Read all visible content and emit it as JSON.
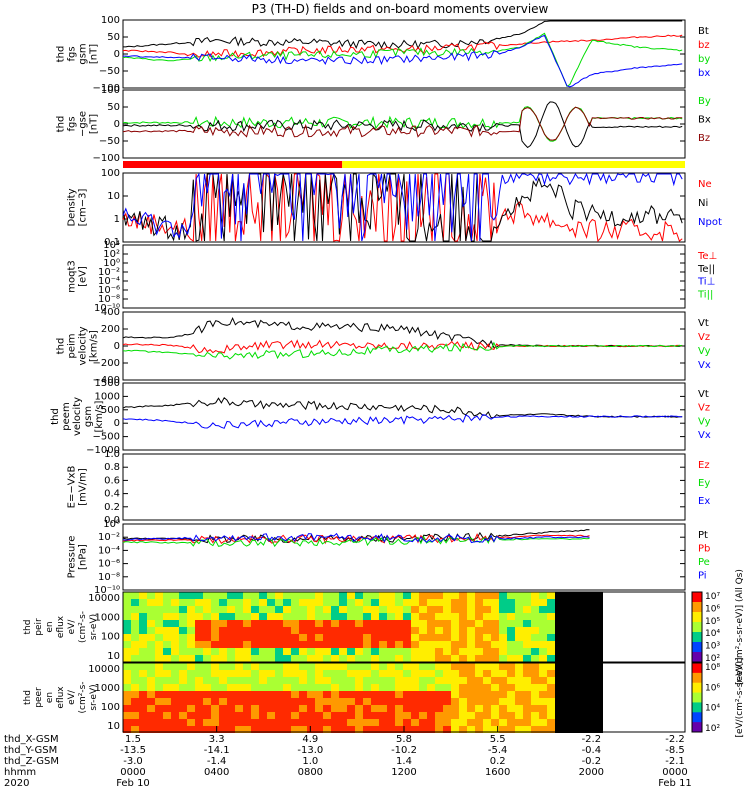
{
  "title": "P3 (TH-D) fields and on-board moments overview",
  "colors": {
    "black": "#000000",
    "red": "#ff0000",
    "green": "#00dd00",
    "blue": "#0000ff",
    "yellow": "#ffff00",
    "darkred": "#8b0000"
  },
  "panels": [
    {
      "id": "fgs-gsm",
      "ylabel": [
        "thd",
        "fgs",
        "gsm",
        "[nT]"
      ],
      "yticks": [
        "100",
        "50",
        "0",
        "−50",
        "−100"
      ],
      "yrange": [
        -100,
        100
      ],
      "scale": "linear",
      "legend": [
        {
          "text": "Bt",
          "color": "#000000"
        },
        {
          "text": "bz",
          "color": "#ff0000"
        },
        {
          "text": "by",
          "color": "#00dd00"
        },
        {
          "text": "bx",
          "color": "#0000ff"
        }
      ]
    },
    {
      "id": "fgs-gse",
      "ylabel": [
        "thd",
        "fgs",
        "−gse",
        "[nT]"
      ],
      "yticks": [
        "100",
        "50",
        "0",
        "−50",
        "−100"
      ],
      "yrange": [
        -120,
        120
      ],
      "scale": "linear",
      "legend": [
        {
          "text": "By",
          "color": "#00dd00"
        },
        {
          "text": "Bx",
          "color": "#000000"
        },
        {
          "text": "Bz",
          "color": "#8b0000"
        }
      ]
    },
    {
      "id": "density",
      "ylabel": [
        "Density",
        "[cm−3]"
      ],
      "yticks": [
        "100",
        "10",
        "1",
        "0.1"
      ],
      "yrange": [
        0.1,
        100
      ],
      "scale": "log",
      "legend": [
        {
          "text": "Ne",
          "color": "#ff0000"
        },
        {
          "text": "Ni",
          "color": "#000000"
        },
        {
          "text": "Npot",
          "color": "#0000ff"
        }
      ]
    },
    {
      "id": "temperature",
      "ylabel": [
        "moqt3",
        "[eV]"
      ],
      "yticks": [
        "10⁴",
        "10²",
        "10⁰",
        "10⁻²",
        "10⁻⁴",
        "10⁻⁶",
        "10⁻⁸",
        "10⁻¹⁰"
      ],
      "yrange": [
        -10,
        4
      ],
      "scale": "log",
      "legend": [
        {
          "text": "Te⊥",
          "color": "#ff0000"
        },
        {
          "text": "Te||",
          "color": "#000000"
        },
        {
          "text": "Ti⊥",
          "color": "#0000ff"
        },
        {
          "text": "Ti||",
          "color": "#00dd00"
        }
      ]
    },
    {
      "id": "peim-velocity",
      "ylabel": [
        "thd",
        "peim",
        "velocity",
        "[km/s]"
      ],
      "yticks": [
        "400",
        "200",
        "0",
        "−200",
        "−400"
      ],
      "yrange": [
        -400,
        400
      ],
      "scale": "linear",
      "legend": [
        {
          "text": "Vt",
          "color": "#000000"
        },
        {
          "text": "Vz",
          "color": "#ff0000"
        },
        {
          "text": "Vy",
          "color": "#00dd00"
        },
        {
          "text": "Vx",
          "color": "#0000ff"
        }
      ]
    },
    {
      "id": "peem-velocity",
      "ylabel": [
        "thd",
        "peem",
        "velocity",
        "gsm",
        "[km/s]"
      ],
      "yticks": [
        "1500",
        "1000",
        "500",
        "0",
        "−500",
        "−1000"
      ],
      "yrange": [
        -1500,
        1500
      ],
      "scale": "linear",
      "legend": [
        {
          "text": "Vt",
          "color": "#000000"
        },
        {
          "text": "Vz",
          "color": "#ff0000"
        },
        {
          "text": "Vy",
          "color": "#00dd00"
        },
        {
          "text": "Vx",
          "color": "#0000ff"
        }
      ]
    },
    {
      "id": "efield",
      "ylabel": [
        "E=−VxB",
        "[mV/m]"
      ],
      "yticks": [
        "1.0",
        "0.8",
        "0.6",
        "0.4",
        "0.2",
        "0.0"
      ],
      "yrange": [
        0,
        1
      ],
      "scale": "linear",
      "legend": [
        {
          "text": "Ez",
          "color": "#ff0000"
        },
        {
          "text": "Ey",
          "color": "#00dd00"
        },
        {
          "text": "Ex",
          "color": "#0000ff"
        }
      ]
    },
    {
      "id": "pressure",
      "ylabel": [
        "Pressure",
        "[nPa]"
      ],
      "yticks": [
        "10⁰",
        "10⁻²",
        "10⁻⁴",
        "10⁻⁶",
        "10⁻⁸",
        "10⁻¹⁰"
      ],
      "yrange": [
        -10,
        1
      ],
      "scale": "log",
      "legend": [
        {
          "text": "Pt",
          "color": "#000000"
        },
        {
          "text": "Pb",
          "color": "#ff0000"
        },
        {
          "text": "Pe",
          "color": "#00dd00"
        },
        {
          "text": "Pi",
          "color": "#0000ff"
        }
      ]
    }
  ],
  "spectrograms": [
    {
      "id": "peir-en-eflux",
      "ylabel": [
        "thd",
        "peir",
        "en",
        "eflux",
        "eV/",
        "(cm²-s-",
        "sr-eV)"
      ],
      "yticks": [
        "10000",
        "1000",
        "100",
        "10"
      ]
    },
    {
      "id": "peer-en-eflux",
      "ylabel": [
        "thd",
        "peer",
        "en",
        "eflux",
        "eV/",
        "(cm²-s-",
        "sr-eV)"
      ],
      "yticks": [
        "10000",
        "1000",
        "100",
        "10"
      ]
    }
  ],
  "colorbars": [
    {
      "ticks": [
        "10⁷",
        "10⁶",
        "10⁵",
        "10⁴",
        "10³",
        "10²"
      ],
      "label": "[eV/(cm²-s-sr-eV)] (All Qs)"
    },
    {
      "ticks": [
        "10⁸",
        "10⁶",
        "10⁴",
        "10²"
      ],
      "label": "[eV/(cm²-s-sr-eV)]"
    }
  ],
  "xaxis": {
    "rows": [
      {
        "label": "thd_X-GSM",
        "values": [
          "1.5",
          "3.3",
          "4.9",
          "5.8",
          "5.5",
          "-2.2",
          "-2.2"
        ]
      },
      {
        "label": "thd_Y-GSM",
        "values": [
          "-13.5",
          "-14.1",
          "-13.0",
          "-10.2",
          "-5.4",
          "-0.4",
          "-8.5"
        ]
      },
      {
        "label": "thd_Z-GSM",
        "values": [
          "-3.0",
          "-1.4",
          "1.0",
          "1.4",
          "0.2",
          "-0.2",
          "-2.1"
        ]
      },
      {
        "label": "hhmm",
        "values": [
          "0000",
          "0400",
          "0800",
          "1200",
          "1600",
          "2000",
          "0000"
        ]
      },
      {
        "label": "2020",
        "values": [
          "Feb 10",
          "",
          "",
          "",
          "",
          "",
          "Feb 11"
        ]
      }
    ]
  },
  "mode_bar": {
    "segments": [
      {
        "color": "#ff0000",
        "from": 0,
        "to": 0.39
      },
      {
        "color": "#ffff00",
        "from": 0.39,
        "to": 1.0
      }
    ]
  },
  "chart_data": {
    "type": "line",
    "title": "P3 (TH-D) fields and on-board moments overview",
    "x_unit": "hours since 2020-02-10 00:00",
    "xlim": [
      0,
      24
    ],
    "series": [
      {
        "panel": "fgs-gsm",
        "name": "Bt",
        "x": [
          0,
          1,
          2,
          3,
          4,
          6,
          8,
          10,
          12,
          14,
          16,
          17,
          18,
          19,
          20,
          22,
          24
        ],
        "values": [
          20,
          25,
          30,
          35,
          40,
          35,
          35,
          30,
          28,
          30,
          45,
          60,
          95,
          120,
          140,
          160,
          170
        ]
      },
      {
        "panel": "fgs-gsm",
        "name": "bz",
        "x": [
          0,
          1,
          2,
          3,
          4,
          6,
          8,
          10,
          12,
          14,
          16,
          17,
          18,
          19,
          20,
          22,
          24
        ],
        "values": [
          10,
          8,
          5,
          -5,
          0,
          5,
          10,
          15,
          12,
          18,
          25,
          30,
          35,
          38,
          40,
          50,
          55
        ]
      },
      {
        "panel": "fgs-gsm",
        "name": "by",
        "x": [
          0,
          1,
          2,
          3,
          4,
          6,
          8,
          10,
          12,
          14,
          16,
          17,
          18,
          19,
          20,
          22,
          24
        ],
        "values": [
          -10,
          -15,
          -20,
          -15,
          -10,
          -5,
          -5,
          0,
          5,
          5,
          10,
          20,
          60,
          -100,
          40,
          20,
          10
        ]
      },
      {
        "panel": "fgs-gsm",
        "name": "bx",
        "x": [
          0,
          1,
          2,
          3,
          4,
          6,
          8,
          10,
          12,
          14,
          16,
          17,
          18,
          19,
          20,
          22,
          24
        ],
        "values": [
          -5,
          -8,
          -10,
          -12,
          -10,
          -15,
          -20,
          -20,
          -15,
          -10,
          0,
          20,
          55,
          -100,
          -60,
          -40,
          -30
        ]
      },
      {
        "panel": "density",
        "name": "Ne",
        "x": [
          0,
          2,
          3,
          3.5,
          4,
          6,
          8,
          10,
          12,
          14,
          16,
          17,
          18,
          19,
          20,
          22,
          24
        ],
        "values": [
          1,
          0.5,
          0.3,
          5,
          20,
          20,
          20,
          15,
          3,
          1.5,
          1.5,
          2,
          1,
          0.5,
          0.3,
          0.3,
          0.3
        ]
      },
      {
        "panel": "density",
        "name": "Ni",
        "x": [
          0,
          2,
          3,
          3.5,
          4,
          6,
          8,
          10,
          12,
          14,
          16,
          17,
          18,
          19,
          20,
          22,
          24
        ],
        "values": [
          1,
          0.4,
          0.3,
          30,
          30,
          30,
          30,
          25,
          2,
          1.2,
          1.5,
          5,
          25,
          3,
          1.5,
          1.5,
          1.5
        ]
      },
      {
        "panel": "density",
        "name": "Npot",
        "x": [
          0,
          2,
          3,
          3.5,
          4,
          6,
          8,
          10,
          12,
          14,
          16,
          17,
          18,
          19,
          20,
          22,
          24
        ],
        "values": [
          1,
          0.5,
          0.4,
          60,
          80,
          90,
          90,
          80,
          40,
          30,
          40,
          60,
          100,
          100,
          100,
          100,
          100
        ]
      },
      {
        "panel": "peim-velocity",
        "name": "Vt",
        "x": [
          0,
          2,
          3,
          4,
          6,
          8,
          10,
          12,
          14,
          16,
          18,
          20,
          24
        ],
        "values": [
          100,
          100,
          150,
          300,
          250,
          230,
          220,
          200,
          100,
          20,
          0,
          0,
          0
        ]
      },
      {
        "panel": "peim-velocity",
        "name": "Vz",
        "x": [
          0,
          2,
          3,
          4,
          6,
          8,
          10,
          12,
          14,
          16,
          18,
          20,
          24
        ],
        "values": [
          20,
          10,
          -30,
          -50,
          10,
          20,
          10,
          5,
          5,
          0,
          0,
          0,
          0
        ]
      },
      {
        "panel": "peim-velocity",
        "name": "Vy",
        "x": [
          0,
          2,
          3,
          4,
          6,
          8,
          10,
          12,
          14,
          16,
          18,
          20,
          24
        ],
        "values": [
          -50,
          -80,
          -100,
          -120,
          -100,
          -90,
          -60,
          -40,
          -20,
          0,
          0,
          0,
          0
        ]
      },
      {
        "panel": "peem-velocity",
        "name": "Vt",
        "x": [
          0,
          2,
          3,
          4,
          6,
          8,
          10,
          12,
          14,
          16,
          18,
          20,
          24
        ],
        "values": [
          400,
          500,
          600,
          700,
          500,
          500,
          450,
          400,
          300,
          50,
          100,
          0,
          0
        ]
      },
      {
        "panel": "peem-velocity",
        "name": "Vx",
        "x": [
          0,
          2,
          3,
          4,
          6,
          8,
          10,
          12,
          14,
          16,
          18,
          20,
          24
        ],
        "values": [
          -100,
          -200,
          -300,
          -400,
          -300,
          -250,
          -200,
          -150,
          -100,
          0,
          0,
          0,
          0
        ]
      },
      {
        "panel": "pressure",
        "name": "Pt",
        "x": [
          0,
          4,
          8,
          12,
          16,
          18,
          20
        ],
        "values": [
          -1.4,
          -1.5,
          -1.5,
          -1.4,
          -1.0,
          -0.4,
          0
        ]
      },
      {
        "panel": "pressure",
        "name": "Pb",
        "x": [
          0,
          4,
          8,
          12,
          16,
          18,
          20
        ],
        "values": [
          -1.8,
          -1.6,
          -1.5,
          -1.5,
          -1.3,
          -0.9,
          -1.0
        ]
      },
      {
        "panel": "pressure",
        "name": "Pe",
        "x": [
          0,
          4,
          8,
          12,
          16,
          18,
          20
        ],
        "values": [
          -2.0,
          -2.2,
          -2.0,
          -1.8,
          -1.6,
          -1.5,
          -1.5
        ]
      },
      {
        "panel": "pressure",
        "name": "Pi",
        "x": [
          0,
          4,
          8,
          12,
          16,
          18,
          20
        ],
        "values": [
          -1.6,
          -1.2,
          -1.2,
          -1.4,
          -1.5,
          -1.2,
          -1.2
        ]
      }
    ]
  }
}
